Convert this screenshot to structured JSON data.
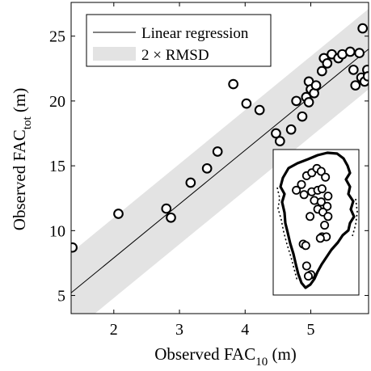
{
  "chart_data": {
    "type": "scatter",
    "xlabel": "Observed FAC",
    "xlabel_sub": "10",
    "xlabel_unit": " (m)",
    "ylabel": "Observed FAC",
    "ylabel_sub": "tot",
    "ylabel_unit": " (m)",
    "xlim": [
      1.35,
      5.88
    ],
    "ylim": [
      3.6,
      27.6
    ],
    "xticks": [
      2,
      3,
      4,
      5
    ],
    "yticks": [
      5,
      10,
      15,
      20,
      25
    ],
    "grid": false,
    "legend": {
      "placement": "top-left",
      "entries": [
        "Linear regression",
        "2 × RMSD"
      ]
    },
    "regression": {
      "intercept": -0.4,
      "slope": 4.15
    },
    "band_half_width": 3.1,
    "band_color": "#e3e3e3",
    "points": [
      {
        "x": 1.37,
        "y": 8.7
      },
      {
        "x": 2.07,
        "y": 11.3
      },
      {
        "x": 2.8,
        "y": 11.7
      },
      {
        "x": 2.87,
        "y": 11.0
      },
      {
        "x": 3.17,
        "y": 13.7
      },
      {
        "x": 3.42,
        "y": 14.8
      },
      {
        "x": 3.58,
        "y": 16.1
      },
      {
        "x": 3.82,
        "y": 21.3
      },
      {
        "x": 4.02,
        "y": 19.8
      },
      {
        "x": 4.22,
        "y": 19.3
      },
      {
        "x": 4.47,
        "y": 17.5
      },
      {
        "x": 4.53,
        "y": 16.9
      },
      {
        "x": 4.7,
        "y": 17.8
      },
      {
        "x": 4.78,
        "y": 20.0
      },
      {
        "x": 4.87,
        "y": 18.8
      },
      {
        "x": 4.93,
        "y": 20.3
      },
      {
        "x": 4.97,
        "y": 19.9
      },
      {
        "x": 4.97,
        "y": 21.5
      },
      {
        "x": 5.0,
        "y": 20.9
      },
      {
        "x": 5.05,
        "y": 20.6
      },
      {
        "x": 5.08,
        "y": 21.2
      },
      {
        "x": 5.17,
        "y": 22.3
      },
      {
        "x": 5.2,
        "y": 23.3
      },
      {
        "x": 5.25,
        "y": 22.9
      },
      {
        "x": 5.32,
        "y": 23.6
      },
      {
        "x": 5.42,
        "y": 23.3
      },
      {
        "x": 5.48,
        "y": 23.6
      },
      {
        "x": 5.6,
        "y": 23.8
      },
      {
        "x": 5.65,
        "y": 22.4
      },
      {
        "x": 5.68,
        "y": 21.2
      },
      {
        "x": 5.74,
        "y": 23.7
      },
      {
        "x": 5.77,
        "y": 21.8
      },
      {
        "x": 5.79,
        "y": 25.6
      },
      {
        "x": 5.82,
        "y": 21.5
      },
      {
        "x": 5.86,
        "y": 22.4
      },
      {
        "x": 5.87,
        "y": 21.9
      }
    ]
  },
  "inset_map": {
    "land_color": "#ffffff",
    "coast_color": "#000000",
    "site_points": [
      [
        0.27,
        0.28
      ],
      [
        0.33,
        0.24
      ],
      [
        0.39,
        0.18
      ],
      [
        0.45,
        0.16
      ],
      [
        0.51,
        0.13
      ],
      [
        0.56,
        0.15
      ],
      [
        0.61,
        0.19
      ],
      [
        0.36,
        0.31
      ],
      [
        0.45,
        0.29
      ],
      [
        0.52,
        0.28
      ],
      [
        0.57,
        0.27
      ],
      [
        0.64,
        0.32
      ],
      [
        0.48,
        0.35
      ],
      [
        0.56,
        0.36
      ],
      [
        0.63,
        0.39
      ],
      [
        0.52,
        0.41
      ],
      [
        0.58,
        0.43
      ],
      [
        0.64,
        0.46
      ],
      [
        0.43,
        0.46
      ],
      [
        0.6,
        0.52
      ],
      [
        0.57,
        0.6
      ],
      [
        0.62,
        0.6
      ],
      [
        0.55,
        0.61
      ],
      [
        0.35,
        0.65
      ],
      [
        0.38,
        0.66
      ],
      [
        0.39,
        0.8
      ],
      [
        0.44,
        0.86
      ],
      [
        0.41,
        0.87
      ]
    ]
  }
}
